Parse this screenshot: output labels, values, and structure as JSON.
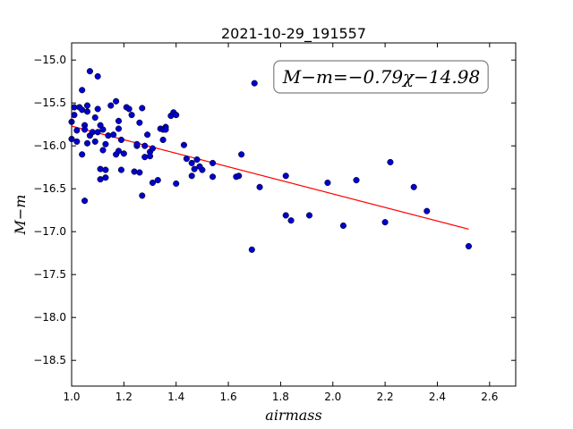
{
  "chart_data": {
    "type": "scatter",
    "title": "2021-10-29_191557",
    "xlabel": "airmass",
    "ylabel": "M−m",
    "xlim": [
      1.0,
      2.7
    ],
    "ylim": [
      -18.8,
      -14.8
    ],
    "y_inverted": true,
    "grid": false,
    "legend": "none",
    "xticks": [
      1.0,
      1.2,
      1.4,
      1.6,
      1.8,
      2.0,
      2.2,
      2.4,
      2.6
    ],
    "xtick_labels": [
      "1.0",
      "1.2",
      "1.4",
      "1.6",
      "1.8",
      "2.0",
      "2.2",
      "2.4",
      "2.6"
    ],
    "yticks": [
      -15.0,
      -15.5,
      -16.0,
      -16.5,
      -17.0,
      -17.5,
      -18.0,
      -18.5
    ],
    "ytick_labels": [
      "−15.0",
      "−15.5",
      "−16.0",
      "−16.5",
      "−17.0",
      "−17.5",
      "−18.0",
      "−18.5"
    ],
    "annotation": "M−m=−0.79χ−14.98",
    "fit": {
      "slope": -0.79,
      "intercept": -14.98,
      "x_range": [
        1.0,
        2.52
      ],
      "color": "#ff0000"
    },
    "series": [
      {
        "color": "#0000cc",
        "points": [
          [
            1.0,
            -15.72
          ],
          [
            1.01,
            -15.64
          ],
          [
            1.0,
            -15.92
          ],
          [
            1.01,
            -15.55
          ],
          [
            1.02,
            -15.95
          ],
          [
            1.02,
            -15.82
          ],
          [
            1.03,
            -15.55
          ],
          [
            1.04,
            -15.58
          ],
          [
            1.04,
            -15.35
          ],
          [
            1.04,
            -16.1
          ],
          [
            1.05,
            -15.76
          ],
          [
            1.05,
            -15.81
          ],
          [
            1.06,
            -15.53
          ],
          [
            1.06,
            -15.97
          ],
          [
            1.06,
            -15.6
          ],
          [
            1.07,
            -15.13
          ],
          [
            1.07,
            -15.88
          ],
          [
            1.05,
            -16.64
          ],
          [
            1.08,
            -15.84
          ],
          [
            1.09,
            -15.67
          ],
          [
            1.09,
            -15.95
          ],
          [
            1.1,
            -15.84
          ],
          [
            1.1,
            -15.19
          ],
          [
            1.1,
            -15.57
          ],
          [
            1.11,
            -15.76
          ],
          [
            1.11,
            -16.27
          ],
          [
            1.11,
            -16.39
          ],
          [
            1.12,
            -15.81
          ],
          [
            1.12,
            -16.05
          ],
          [
            1.13,
            -15.98
          ],
          [
            1.13,
            -16.28
          ],
          [
            1.13,
            -16.37
          ],
          [
            1.14,
            -15.88
          ],
          [
            1.15,
            -15.53
          ],
          [
            1.16,
            -15.87
          ],
          [
            1.17,
            -15.48
          ],
          [
            1.17,
            -16.1
          ],
          [
            1.18,
            -16.06
          ],
          [
            1.18,
            -15.71
          ],
          [
            1.18,
            -15.8
          ],
          [
            1.19,
            -15.93
          ],
          [
            1.19,
            -16.28
          ],
          [
            1.2,
            -16.09
          ],
          [
            1.21,
            -15.55
          ],
          [
            1.22,
            -15.57
          ],
          [
            1.23,
            -15.64
          ],
          [
            1.24,
            -16.3
          ],
          [
            1.25,
            -16.0
          ],
          [
            1.25,
            -15.98
          ],
          [
            1.26,
            -15.73
          ],
          [
            1.26,
            -16.31
          ],
          [
            1.27,
            -15.56
          ],
          [
            1.27,
            -16.58
          ],
          [
            1.28,
            -16.13
          ],
          [
            1.28,
            -16.0
          ],
          [
            1.29,
            -15.87
          ],
          [
            1.3,
            -16.07
          ],
          [
            1.3,
            -16.12
          ],
          [
            1.31,
            -16.43
          ],
          [
            1.31,
            -16.03
          ],
          [
            1.33,
            -16.4
          ],
          [
            1.34,
            -15.8
          ],
          [
            1.35,
            -15.93
          ],
          [
            1.35,
            -15.81
          ],
          [
            1.36,
            -15.78
          ],
          [
            1.36,
            -15.81
          ],
          [
            1.38,
            -15.65
          ],
          [
            1.39,
            -15.61
          ],
          [
            1.4,
            -15.64
          ],
          [
            1.4,
            -16.44
          ],
          [
            1.43,
            -15.99
          ],
          [
            1.44,
            -16.15
          ],
          [
            1.46,
            -16.35
          ],
          [
            1.46,
            -16.2
          ],
          [
            1.47,
            -16.27
          ],
          [
            1.48,
            -16.16
          ],
          [
            1.49,
            -16.24
          ],
          [
            1.5,
            -16.28
          ],
          [
            1.54,
            -16.36
          ],
          [
            1.54,
            -16.2
          ],
          [
            1.63,
            -16.36
          ],
          [
            1.64,
            -16.35
          ],
          [
            1.65,
            -16.1
          ],
          [
            1.69,
            -17.21
          ],
          [
            1.7,
            -15.27
          ],
          [
            1.72,
            -16.48
          ],
          [
            1.82,
            -16.35
          ],
          [
            1.82,
            -16.81
          ],
          [
            1.84,
            -16.87
          ],
          [
            1.91,
            -16.81
          ],
          [
            1.98,
            -16.43
          ],
          [
            2.04,
            -16.93
          ],
          [
            2.09,
            -16.4
          ],
          [
            2.2,
            -16.89
          ],
          [
            2.22,
            -16.19
          ],
          [
            2.31,
            -16.48
          ],
          [
            2.36,
            -16.76
          ],
          [
            2.52,
            -17.17
          ]
        ]
      }
    ]
  }
}
